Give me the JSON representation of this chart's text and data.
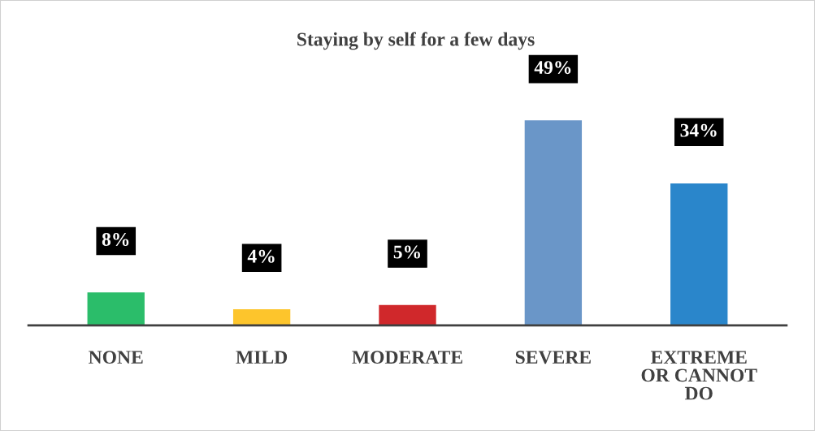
{
  "chart_data": {
    "type": "bar",
    "title": "Staying by self for a few days",
    "categories": [
      "NONE",
      "MILD",
      "MODERATE",
      "SEVERE",
      "EXTREME\nOR CANNOT\nDO"
    ],
    "values": [
      8,
      4,
      5,
      49,
      34
    ],
    "colors": [
      "#2bbd6a",
      "#fdc52c",
      "#d0282b",
      "#6a96c8",
      "#2a86cb"
    ],
    "value_labels": [
      "8%",
      "4%",
      "5%",
      "49%",
      "34%"
    ],
    "grid": false,
    "legend": false
  }
}
